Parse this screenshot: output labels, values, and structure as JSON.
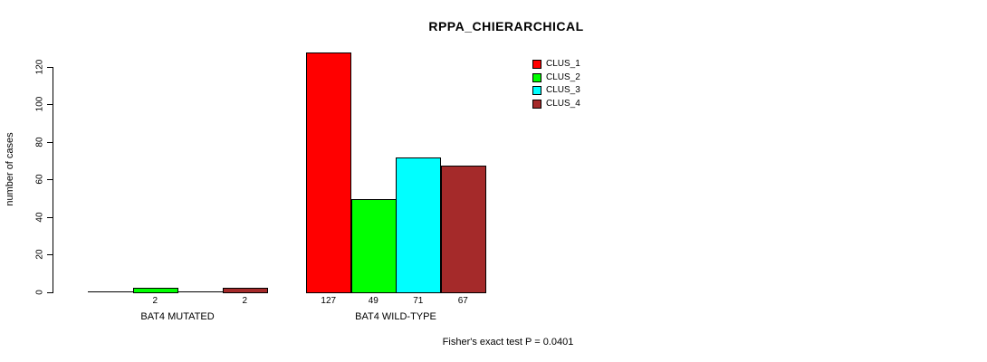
{
  "chart_data": {
    "type": "bar",
    "title": "RPPA_CHIERARCHICAL",
    "ylabel": "number of cases",
    "xlabel": "",
    "ylim": [
      0,
      120
    ],
    "yticks": [
      0,
      20,
      40,
      60,
      80,
      100,
      120
    ],
    "grid": false,
    "legend_position": "top-right",
    "show_zero_value_labels": false,
    "categories": [
      "BAT4 MUTATED",
      "BAT4 WILD-TYPE"
    ],
    "series": [
      {
        "name": "CLUS_1",
        "color": "#FF0000",
        "values": [
          0,
          127
        ]
      },
      {
        "name": "CLUS_2",
        "color": "#00FF00",
        "values": [
          2,
          49
        ]
      },
      {
        "name": "CLUS_3",
        "color": "#00FFFF",
        "values": [
          0,
          71
        ]
      },
      {
        "name": "CLUS_4",
        "color": "#A52A2A",
        "values": [
          2,
          67
        ]
      }
    ],
    "annotation": "Fisher's exact test P = 0.0401"
  }
}
